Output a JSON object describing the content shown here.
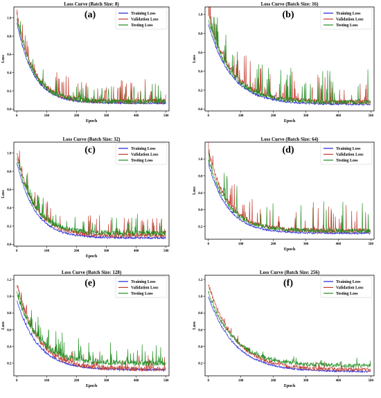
{
  "chart_data": [
    {
      "type": "line",
      "letter": "(a)",
      "title": "Loss Curve (Batch Size: 8)",
      "xlabel": "Epoch",
      "ylabel": "Loss",
      "xlim": [
        -10,
        510
      ],
      "ylim": [
        -0.02,
        1.12
      ],
      "xticks": [
        0,
        100,
        200,
        300,
        400,
        500
      ],
      "yticks": [
        0.0,
        0.2,
        0.4,
        0.6,
        0.8,
        1.0
      ],
      "legend_position": "top-right",
      "series": [
        {
          "name": "Training Loss",
          "color": "#1f1fd6",
          "start": 0.95,
          "floor": 0.065,
          "tau": 55,
          "noise": 0.012,
          "spike_prob": 0.03,
          "spike_max": 0.05,
          "seed": 11
        },
        {
          "name": "Validation Loss",
          "color": "#c0392b",
          "start": 1.05,
          "floor": 0.085,
          "tau": 55,
          "noise": 0.03,
          "spike_prob": 0.12,
          "spike_max": 0.22,
          "seed": 12
        },
        {
          "name": "Testing Loss",
          "color": "#1e8c1e",
          "start": 1.0,
          "floor": 0.08,
          "tau": 55,
          "noise": 0.025,
          "spike_prob": 0.1,
          "spike_max": 0.18,
          "seed": 13
        }
      ]
    },
    {
      "type": "line",
      "letter": "(b)",
      "title": "Loss Curve (Batch Size: 16)",
      "xlabel": "Epoch",
      "ylabel": "Loss",
      "xlim": [
        -10,
        510
      ],
      "ylim": [
        -0.02,
        1.08
      ],
      "xticks": [
        0,
        100,
        200,
        300,
        400,
        500
      ],
      "yticks": [
        0.0,
        0.2,
        0.4,
        0.6,
        0.8,
        1.0
      ],
      "legend_position": "top-right",
      "series": [
        {
          "name": "Training Loss",
          "color": "#1f1fd6",
          "start": 0.9,
          "floor": 0.05,
          "tau": 70,
          "noise": 0.012,
          "spike_prob": 0.03,
          "spike_max": 0.04,
          "seed": 21
        },
        {
          "name": "Validation Loss",
          "color": "#c0392b",
          "start": 1.0,
          "floor": 0.075,
          "tau": 70,
          "noise": 0.025,
          "spike_prob": 0.1,
          "spike_max": 0.3,
          "seed": 22
        },
        {
          "name": "Testing Loss",
          "color": "#1e8c1e",
          "start": 0.95,
          "floor": 0.07,
          "tau": 70,
          "noise": 0.025,
          "spike_prob": 0.08,
          "spike_max": 0.35,
          "seed": 23
        }
      ]
    },
    {
      "type": "line",
      "letter": "(c)",
      "title": "Loss Curve (Batch Size: 32)",
      "xlabel": "Epoch",
      "ylabel": "Loss",
      "xlim": [
        -10,
        510
      ],
      "ylim": [
        -0.02,
        1.12
      ],
      "xticks": [
        0,
        100,
        200,
        300,
        400,
        500
      ],
      "yticks": [
        0.0,
        0.2,
        0.4,
        0.6,
        0.8,
        1.0
      ],
      "legend_position": "top-right",
      "series": [
        {
          "name": "Training Loss",
          "color": "#1f1fd6",
          "start": 0.9,
          "floor": 0.07,
          "tau": 60,
          "noise": 0.012,
          "spike_prob": 0.03,
          "spike_max": 0.04,
          "seed": 31
        },
        {
          "name": "Validation Loss",
          "color": "#c0392b",
          "start": 1.0,
          "floor": 0.095,
          "tau": 60,
          "noise": 0.025,
          "spike_prob": 0.1,
          "spike_max": 0.2,
          "seed": 32
        },
        {
          "name": "Testing Loss",
          "color": "#1e8c1e",
          "start": 0.95,
          "floor": 0.12,
          "tau": 60,
          "noise": 0.03,
          "spike_prob": 0.12,
          "spike_max": 0.2,
          "seed": 33
        }
      ]
    },
    {
      "type": "line",
      "letter": "(d)",
      "title": "Loss Curve (Batch Size: 64)",
      "xlabel": "Epoch",
      "ylabel": "Loss",
      "xlim": [
        -10,
        510
      ],
      "ylim": [
        0.05,
        1.2
      ],
      "xticks": [
        0,
        100,
        200,
        300,
        400,
        500
      ],
      "yticks": [
        0.2,
        0.4,
        0.6,
        0.8,
        1.0
      ],
      "legend_position": "top-right",
      "series": [
        {
          "name": "Training Loss",
          "color": "#1f1fd6",
          "start": 0.95,
          "floor": 0.12,
          "tau": 60,
          "noise": 0.012,
          "spike_prob": 0.03,
          "spike_max": 0.04,
          "seed": 41
        },
        {
          "name": "Validation Loss",
          "color": "#c0392b",
          "start": 1.1,
          "floor": 0.15,
          "tau": 60,
          "noise": 0.03,
          "spike_prob": 0.12,
          "spike_max": 0.3,
          "seed": 42
        },
        {
          "name": "Testing Loss",
          "color": "#1e8c1e",
          "start": 1.0,
          "floor": 0.15,
          "tau": 60,
          "noise": 0.025,
          "spike_prob": 0.08,
          "spike_max": 0.35,
          "seed": 43
        }
      ]
    },
    {
      "type": "line",
      "letter": "(e)",
      "title": "Loss Curve (Batch Size: 128)",
      "xlabel": "Epoch",
      "ylabel": "Loss",
      "xlim": [
        -10,
        510
      ],
      "ylim": [
        0.05,
        1.25
      ],
      "xticks": [
        0,
        100,
        200,
        300,
        400,
        500
      ],
      "yticks": [
        0.2,
        0.4,
        0.6,
        0.8,
        1.0,
        1.2
      ],
      "legend_position": "top-right",
      "series": [
        {
          "name": "Training Loss",
          "color": "#1f1fd6",
          "start": 0.95,
          "floor": 0.12,
          "tau": 70,
          "noise": 0.012,
          "spike_prob": 0.03,
          "spike_max": 0.04,
          "seed": 51
        },
        {
          "name": "Validation Loss",
          "color": "#c0392b",
          "start": 1.15,
          "floor": 0.13,
          "tau": 70,
          "noise": 0.03,
          "spike_prob": 0.1,
          "spike_max": 0.15,
          "seed": 52
        },
        {
          "name": "Testing Loss",
          "color": "#1e8c1e",
          "start": 1.05,
          "floor": 0.2,
          "tau": 70,
          "noise": 0.035,
          "spike_prob": 0.12,
          "spike_max": 0.25,
          "seed": 53
        }
      ]
    },
    {
      "type": "line",
      "letter": "(f)",
      "title": "Loss Curve (Batch Size: 256)",
      "xlabel": "Epoch",
      "ylabel": "Loss",
      "xlim": [
        -10,
        510
      ],
      "ylim": [
        0.05,
        1.25
      ],
      "xticks": [
        0,
        100,
        200,
        300,
        400,
        500
      ],
      "yticks": [
        0.2,
        0.4,
        0.6,
        0.8,
        1.0,
        1.2
      ],
      "legend_position": "top-right",
      "series": [
        {
          "name": "Training Loss",
          "color": "#1f1fd6",
          "start": 1.0,
          "floor": 0.1,
          "tau": 80,
          "noise": 0.012,
          "spike_prob": 0.02,
          "spike_max": 0.03,
          "seed": 61
        },
        {
          "name": "Validation Loss",
          "color": "#c0392b",
          "start": 1.15,
          "floor": 0.12,
          "tau": 80,
          "noise": 0.025,
          "spike_prob": 0.06,
          "spike_max": 0.08,
          "seed": 62
        },
        {
          "name": "Testing Loss",
          "color": "#1e8c1e",
          "start": 1.05,
          "floor": 0.17,
          "tau": 80,
          "noise": 0.025,
          "spike_prob": 0.06,
          "spike_max": 0.08,
          "seed": 63
        }
      ]
    }
  ]
}
